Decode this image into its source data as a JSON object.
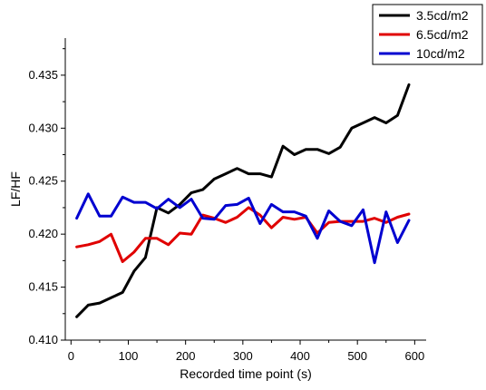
{
  "chart_data": {
    "type": "line",
    "title": "",
    "xlabel": "Recorded time point (s)",
    "ylabel": "LF/HF",
    "xlim": [
      -10,
      620
    ],
    "ylim": [
      0.41,
      0.4385
    ],
    "xticks": [
      0,
      100,
      200,
      300,
      400,
      500,
      600
    ],
    "yticks": [
      0.41,
      0.415,
      0.42,
      0.425,
      0.43,
      0.435
    ],
    "ytick_labels": [
      "0.410",
      "0.415",
      "0.420",
      "0.425",
      "0.430",
      "0.435"
    ],
    "grid": false,
    "legend_position": "top-right",
    "series": [
      {
        "name": "3.5cd/m2",
        "color": "#000000",
        "x": [
          10,
          30,
          50,
          70,
          90,
          110,
          130,
          150,
          170,
          190,
          210,
          230,
          250,
          270,
          290,
          310,
          330,
          350,
          370,
          390,
          410,
          430,
          450,
          470,
          490,
          510,
          530,
          550,
          570,
          590
        ],
        "y": [
          0.4122,
          0.4133,
          0.4135,
          0.414,
          0.4145,
          0.4165,
          0.4178,
          0.4225,
          0.422,
          0.4228,
          0.4239,
          0.4242,
          0.4252,
          0.4257,
          0.4262,
          0.4257,
          0.4257,
          0.4254,
          0.4283,
          0.4275,
          0.428,
          0.428,
          0.4276,
          0.4282,
          0.43,
          0.4305,
          0.431,
          0.4305,
          0.4312,
          0.4341
        ]
      },
      {
        "name": "6.5cd/m2",
        "color": "#e00000",
        "x": [
          10,
          30,
          50,
          70,
          90,
          110,
          130,
          150,
          170,
          190,
          210,
          230,
          250,
          270,
          290,
          310,
          330,
          350,
          370,
          390,
          410,
          430,
          450,
          470,
          490,
          510,
          530,
          550,
          570,
          590
        ],
        "y": [
          0.4188,
          0.419,
          0.4193,
          0.42,
          0.4174,
          0.4183,
          0.4196,
          0.4196,
          0.419,
          0.4201,
          0.42,
          0.4218,
          0.4215,
          0.4211,
          0.4216,
          0.4225,
          0.4218,
          0.4206,
          0.4216,
          0.4214,
          0.4216,
          0.4201,
          0.4211,
          0.4212,
          0.4212,
          0.4212,
          0.4215,
          0.4211,
          0.4216,
          0.4219
        ]
      },
      {
        "name": "10cd/m2",
        "color": "#0000d0",
        "x": [
          10,
          30,
          50,
          70,
          90,
          110,
          130,
          150,
          170,
          190,
          210,
          230,
          250,
          270,
          290,
          310,
          330,
          350,
          370,
          390,
          410,
          430,
          450,
          470,
          490,
          510,
          530,
          550,
          570,
          590
        ],
        "y": [
          0.4215,
          0.4238,
          0.4217,
          0.4217,
          0.4235,
          0.423,
          0.423,
          0.4224,
          0.4233,
          0.4225,
          0.4233,
          0.4215,
          0.4214,
          0.4227,
          0.4228,
          0.4234,
          0.421,
          0.4228,
          0.4221,
          0.4221,
          0.4217,
          0.4196,
          0.4222,
          0.4212,
          0.4208,
          0.4223,
          0.4173,
          0.4221,
          0.4192,
          0.4213
        ]
      }
    ]
  }
}
